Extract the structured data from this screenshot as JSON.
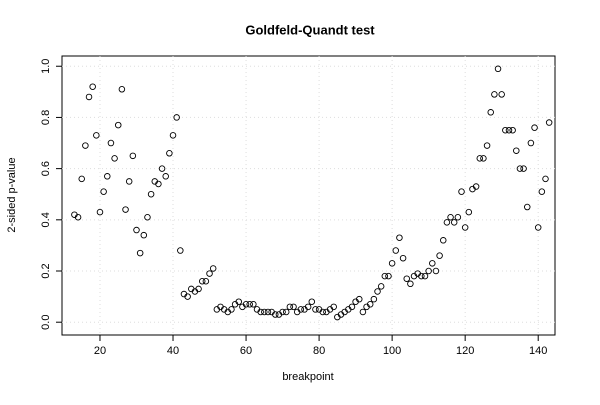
{
  "chart_data": {
    "type": "scatter",
    "title": "Goldfeld-Quandt test",
    "x_label": "breakpoint",
    "y_label": "2-sided p-value",
    "x": [
      13,
      14,
      15,
      16,
      17,
      18,
      19,
      20,
      21,
      22,
      23,
      24,
      25,
      26,
      27,
      28,
      29,
      30,
      31,
      32,
      33,
      34,
      35,
      36,
      37,
      38,
      39,
      40,
      41,
      42,
      43,
      44,
      45,
      46,
      47,
      48,
      49,
      50,
      51,
      52,
      53,
      54,
      55,
      56,
      57,
      58,
      59,
      60,
      61,
      62,
      63,
      64,
      65,
      66,
      67,
      68,
      69,
      70,
      71,
      72,
      73,
      74,
      75,
      76,
      77,
      78,
      79,
      80,
      81,
      82,
      83,
      84,
      85,
      86,
      87,
      88,
      89,
      90,
      91,
      92,
      93,
      94,
      95,
      96,
      97,
      98,
      99,
      100,
      101,
      102,
      103,
      104,
      105,
      106,
      107,
      108,
      109,
      110,
      111,
      112,
      113,
      114,
      115,
      116,
      117,
      118,
      119,
      120,
      121,
      122,
      123,
      124,
      125,
      126,
      127,
      128,
      129,
      130,
      131,
      132,
      133,
      134,
      135,
      136,
      137,
      138,
      139,
      140,
      141,
      142,
      143
    ],
    "values": [
      0.42,
      0.41,
      0.56,
      0.69,
      0.88,
      0.92,
      0.73,
      0.43,
      0.51,
      0.57,
      0.7,
      0.64,
      0.77,
      0.91,
      0.44,
      0.55,
      0.65,
      0.36,
      0.27,
      0.34,
      0.41,
      0.5,
      0.55,
      0.54,
      0.6,
      0.57,
      0.66,
      0.73,
      0.8,
      0.28,
      0.11,
      0.1,
      0.13,
      0.12,
      0.13,
      0.16,
      0.16,
      0.19,
      0.21,
      0.05,
      0.06,
      0.05,
      0.04,
      0.05,
      0.07,
      0.08,
      0.06,
      0.07,
      0.07,
      0.07,
      0.05,
      0.04,
      0.04,
      0.04,
      0.04,
      0.03,
      0.03,
      0.04,
      0.04,
      0.06,
      0.06,
      0.04,
      0.05,
      0.05,
      0.06,
      0.08,
      0.05,
      0.05,
      0.04,
      0.04,
      0.05,
      0.06,
      0.02,
      0.03,
      0.04,
      0.05,
      0.06,
      0.08,
      0.09,
      0.04,
      0.06,
      0.07,
      0.09,
      0.12,
      0.14,
      0.18,
      0.18,
      0.23,
      0.28,
      0.33,
      0.25,
      0.17,
      0.15,
      0.18,
      0.19,
      0.18,
      0.18,
      0.2,
      0.23,
      0.2,
      0.26,
      0.32,
      0.39,
      0.41,
      0.39,
      0.41,
      0.51,
      0.37,
      0.43,
      0.52,
      0.53,
      0.64,
      0.64,
      0.69,
      0.82,
      0.89,
      0.99,
      0.89,
      0.75,
      0.75,
      0.75,
      0.67,
      0.6,
      0.6,
      0.45,
      0.7,
      0.76,
      0.37,
      0.51,
      0.56,
      0.78
    ],
    "color": "#000000",
    "xlim": [
      9.6,
      144.6
    ],
    "xticks": [
      20,
      40,
      60,
      80,
      100,
      120,
      140
    ],
    "ylim": [
      -0.05,
      1.04
    ],
    "yticks": [
      {
        "value": 0,
        "label": "0.0"
      },
      0.2,
      0.4,
      0.6,
      0.8,
      {
        "value": 1,
        "label": "1.0"
      }
    ],
    "grid": true
  }
}
